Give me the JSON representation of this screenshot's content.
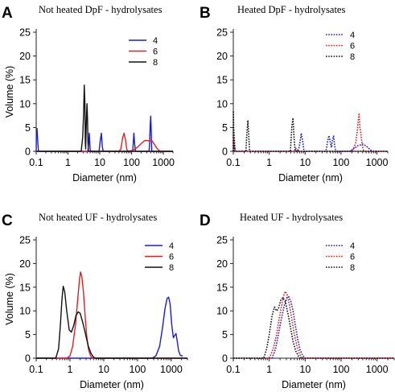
{
  "colors": {
    "s4": "#1a1adb",
    "s6": "#e02020",
    "s8": "#111111",
    "axis": "#222222"
  },
  "chart_data": [
    {
      "panel_letter": "A",
      "title": "Not heated DpF - hydrolysates",
      "type": "line",
      "xlabel": "Diameter (nm)",
      "ylabel": "Volume (%)",
      "xscale": "log",
      "xlim": [
        0.1,
        2000
      ],
      "ylim": [
        0,
        25
      ],
      "xticks": [
        0.1,
        1,
        10,
        100,
        1000
      ],
      "xtick_labels": [
        "0.1",
        "1",
        "10",
        "100",
        "1000"
      ],
      "yticks": [
        0,
        5,
        10,
        15,
        20,
        25
      ],
      "ytick_labels": [
        "0",
        "5",
        "10",
        "15",
        "20",
        "25"
      ],
      "dashed": false,
      "legend_position": "top-right",
      "series": [
        {
          "name": "4",
          "color": "#1a1adb",
          "points": [
            [
              0.1,
              0
            ],
            [
              0.101,
              3
            ],
            [
              0.106,
              4.8
            ],
            [
              0.112,
              2
            ],
            [
              0.118,
              0
            ],
            [
              4.2,
              0
            ],
            [
              4.45,
              1.5
            ],
            [
              4.7,
              3.8
            ],
            [
              4.95,
              0.5
            ],
            [
              5.2,
              0
            ],
            [
              9.5,
              0
            ],
            [
              10.3,
              2.2
            ],
            [
              11.2,
              3.8
            ],
            [
              12,
              1
            ],
            [
              12.8,
              0
            ],
            [
              108,
              0
            ],
            [
              112,
              1.5
            ],
            [
              118,
              3.8
            ],
            [
              125,
              1.5
            ],
            [
              132,
              0
            ],
            [
              355,
              0
            ],
            [
              370,
              2
            ],
            [
              385,
              5.5
            ],
            [
              400,
              7.4
            ],
            [
              415,
              4
            ],
            [
              430,
              0
            ],
            [
              2000,
              0
            ]
          ]
        },
        {
          "name": "6",
          "color": "#e02020",
          "points": [
            [
              0.1,
              0
            ],
            [
              40,
              0
            ],
            [
              46,
              0.5
            ],
            [
              52,
              2.8
            ],
            [
              58,
              3.8
            ],
            [
              64,
              2.5
            ],
            [
              70,
              0.6
            ],
            [
              75,
              0
            ],
            [
              110,
              0.2
            ],
            [
              150,
              0.8
            ],
            [
              200,
              1.6
            ],
            [
              250,
              2.2
            ],
            [
              300,
              2.3
            ],
            [
              350,
              2.2
            ],
            [
              400,
              2.2
            ],
            [
              430,
              2.3
            ],
            [
              460,
              2
            ],
            [
              520,
              1.5
            ],
            [
              600,
              0.8
            ],
            [
              700,
              0.3
            ],
            [
              800,
              0
            ],
            [
              2000,
              0
            ]
          ]
        },
        {
          "name": "8",
          "color": "#111111",
          "points": [
            [
              0.1,
              0
            ],
            [
              2.6,
              0
            ],
            [
              2.9,
              3
            ],
            [
              3.1,
              8
            ],
            [
              3.25,
              13.9
            ],
            [
              3.4,
              10
            ],
            [
              3.5,
              2
            ],
            [
              3.6,
              0.5
            ],
            [
              3.7,
              4
            ],
            [
              3.85,
              8
            ],
            [
              3.95,
              10
            ],
            [
              4.1,
              7
            ],
            [
              4.25,
              2
            ],
            [
              4.4,
              0
            ],
            [
              2000,
              0
            ]
          ]
        }
      ]
    },
    {
      "panel_letter": "B",
      "title": "Heated DpF - hydrolysates",
      "type": "line",
      "xlabel": "Diameter (nm)",
      "ylabel": "",
      "xscale": "log",
      "xlim": [
        0.1,
        2000
      ],
      "ylim": [
        0,
        25
      ],
      "xticks": [
        0.1,
        1,
        10,
        100,
        1000
      ],
      "xtick_labels": [
        "0.1",
        "1",
        "10",
        "100",
        "1000"
      ],
      "yticks": [
        0,
        5,
        10,
        15,
        20,
        25
      ],
      "ytick_labels": [
        "0",
        "5",
        "10",
        "15",
        "20",
        "25"
      ],
      "dashed": true,
      "legend_position": "top-right",
      "series": [
        {
          "name": "4",
          "color": "#1a1adb",
          "points": [
            [
              0.1,
              0
            ],
            [
              0.102,
              5
            ],
            [
              0.108,
              2
            ],
            [
              0.114,
              0
            ],
            [
              6.2,
              0
            ],
            [
              6.9,
              1
            ],
            [
              7.8,
              3.8
            ],
            [
              8.6,
              2
            ],
            [
              9.3,
              0
            ],
            [
              38,
              0
            ],
            [
              42,
              2
            ],
            [
              46,
              3.3
            ],
            [
              50,
              2
            ],
            [
              54,
              0.8
            ],
            [
              58,
              2.5
            ],
            [
              62,
              3.2
            ],
            [
              67,
              1
            ],
            [
              72,
              0
            ],
            [
              180,
              0
            ],
            [
              220,
              0.5
            ],
            [
              300,
              1.2
            ],
            [
              400,
              1.5
            ],
            [
              480,
              1.2
            ],
            [
              560,
              0.8
            ],
            [
              650,
              0.3
            ],
            [
              750,
              0
            ],
            [
              2000,
              0
            ]
          ]
        },
        {
          "name": "6",
          "color": "#e02020",
          "points": [
            [
              0.1,
              0
            ],
            [
              0.101,
              3
            ],
            [
              0.107,
              1
            ],
            [
              0.113,
              0
            ],
            [
              5,
              0
            ],
            [
              5.6,
              0.6
            ],
            [
              6.2,
              0
            ],
            [
              190,
              0
            ],
            [
              230,
              0.8
            ],
            [
              260,
              2
            ],
            [
              285,
              4.5
            ],
            [
              305,
              7
            ],
            [
              320,
              8
            ],
            [
              335,
              5
            ],
            [
              352,
              4
            ],
            [
              372,
              2.5
            ],
            [
              395,
              1
            ],
            [
              430,
              0
            ],
            [
              2000,
              0
            ]
          ]
        },
        {
          "name": "8",
          "color": "#111111",
          "points": [
            [
              0.1,
              0
            ],
            [
              0.1005,
              8.5
            ],
            [
              0.103,
              4
            ],
            [
              0.108,
              0
            ],
            [
              0.225,
              0
            ],
            [
              0.235,
              3
            ],
            [
              0.255,
              6.5
            ],
            [
              0.27,
              3
            ],
            [
              0.285,
              0
            ],
            [
              3.9,
              0
            ],
            [
              4.1,
              3
            ],
            [
              4.3,
              5.5
            ],
            [
              4.6,
              7
            ],
            [
              4.9,
              3
            ],
            [
              5.3,
              0
            ],
            [
              2000,
              0
            ]
          ]
        }
      ]
    },
    {
      "panel_letter": "C",
      "title": "Not heated UF - hydrolysates",
      "type": "line",
      "xlabel": "Diameter (nm)",
      "ylabel": "Volume (%)",
      "xscale": "log",
      "xlim": [
        0.1,
        3000
      ],
      "ylim": [
        0,
        25
      ],
      "xticks": [
        0.1,
        1,
        10,
        100,
        1000
      ],
      "xtick_labels": [
        "0.1",
        "1",
        "10",
        "100",
        "1000"
      ],
      "yticks": [
        0,
        5,
        10,
        15,
        20,
        25
      ],
      "ytick_labels": [
        "0",
        "5",
        "10",
        "15",
        "20",
        "25"
      ],
      "dashed": false,
      "legend_position": "top-right",
      "series": [
        {
          "name": "4",
          "color": "#1a1adb",
          "points": [
            [
              0.1,
              0
            ],
            [
              270,
              0
            ],
            [
              350,
              0.5
            ],
            [
              450,
              2.5
            ],
            [
              550,
              6.5
            ],
            [
              650,
              10.5
            ],
            [
              750,
              12.6
            ],
            [
              830,
              12.9
            ],
            [
              920,
              11.5
            ],
            [
              1030,
              7
            ],
            [
              1150,
              4.3
            ],
            [
              1250,
              4.8
            ],
            [
              1380,
              5.2
            ],
            [
              1500,
              3.5
            ],
            [
              1650,
              1.5
            ],
            [
              1850,
              0.6
            ],
            [
              2000,
              0.5
            ],
            [
              2200,
              0.5
            ]
          ]
        },
        {
          "name": "6",
          "color": "#e02020",
          "points": [
            [
              0.1,
              0
            ],
            [
              0.8,
              0
            ],
            [
              1,
              0.5
            ],
            [
              1.2,
              2.5
            ],
            [
              1.45,
              7
            ],
            [
              1.7,
              12.5
            ],
            [
              1.9,
              16.5
            ],
            [
              2.05,
              18.2
            ],
            [
              2.25,
              17.2
            ],
            [
              2.5,
              14
            ],
            [
              2.8,
              9
            ],
            [
              3.1,
              5
            ],
            [
              3.5,
              2
            ],
            [
              4,
              0.6
            ],
            [
              4.6,
              0
            ],
            [
              3000,
              0
            ]
          ]
        },
        {
          "name": "8",
          "color": "#111111",
          "points": [
            [
              0.1,
              0
            ],
            [
              0.38,
              0
            ],
            [
              0.46,
              2
            ],
            [
              0.52,
              7
            ],
            [
              0.58,
              12.5
            ],
            [
              0.63,
              15.2
            ],
            [
              0.7,
              14
            ],
            [
              0.8,
              10
            ],
            [
              0.95,
              6
            ],
            [
              1.1,
              5.5
            ],
            [
              1.3,
              7
            ],
            [
              1.5,
              9
            ],
            [
              1.75,
              9.8
            ],
            [
              2,
              9.5
            ],
            [
              2.4,
              7.5
            ],
            [
              2.9,
              5
            ],
            [
              3.5,
              2.5
            ],
            [
              4.2,
              1
            ],
            [
              5,
              0.2
            ],
            [
              5.8,
              0
            ],
            [
              3000,
              0
            ]
          ]
        }
      ]
    },
    {
      "panel_letter": "D",
      "title": "Heated UF - hydrolysates",
      "type": "line",
      "xlabel": "Diameter (nm)",
      "ylabel": "",
      "xscale": "log",
      "xlim": [
        0.1,
        3000
      ],
      "ylim": [
        0,
        25
      ],
      "xticks": [
        0.1,
        1,
        10,
        100,
        1000
      ],
      "xtick_labels": [
        "0.1",
        "1",
        "10",
        "100",
        "1000"
      ],
      "yticks": [
        0,
        5,
        10,
        15,
        20,
        25
      ],
      "ytick_labels": [
        "0",
        "5",
        "10",
        "15",
        "20",
        "25"
      ],
      "dashed": true,
      "legend_position": "top-right",
      "series": [
        {
          "name": "4",
          "color": "#1a1adb",
          "points": [
            [
              0.1,
              0
            ],
            [
              1.2,
              0
            ],
            [
              1.5,
              2
            ],
            [
              1.8,
              5
            ],
            [
              2.2,
              8.5
            ],
            [
              2.6,
              11
            ],
            [
              3.1,
              12.8
            ],
            [
              3.5,
              13
            ],
            [
              4,
              12
            ],
            [
              4.6,
              10
            ],
            [
              5.3,
              7
            ],
            [
              6.2,
              4
            ],
            [
              7.2,
              1.8
            ],
            [
              8.5,
              0.6
            ],
            [
              10,
              0
            ],
            [
              3000,
              0
            ]
          ]
        },
        {
          "name": "6",
          "color": "#e02020",
          "points": [
            [
              0.1,
              0
            ],
            [
              1,
              0
            ],
            [
              1.3,
              2
            ],
            [
              1.6,
              5
            ],
            [
              1.9,
              8.5
            ],
            [
              2.2,
              11
            ],
            [
              2.5,
              13.2
            ],
            [
              2.8,
              14.1
            ],
            [
              3.2,
              13.3
            ],
            [
              3.7,
              11
            ],
            [
              4.3,
              8
            ],
            [
              5,
              5
            ],
            [
              6,
              2.3
            ],
            [
              7,
              0.8
            ],
            [
              8.5,
              0
            ],
            [
              3000,
              0
            ]
          ]
        },
        {
          "name": "8",
          "color": "#111111",
          "points": [
            [
              0.1,
              0
            ],
            [
              0.7,
              0
            ],
            [
              0.85,
              2
            ],
            [
              1,
              5
            ],
            [
              1.2,
              9
            ],
            [
              1.4,
              10.8
            ],
            [
              1.6,
              10
            ],
            [
              1.8,
              10.5
            ],
            [
              2.1,
              12.3
            ],
            [
              2.4,
              12.8
            ],
            [
              2.8,
              12
            ],
            [
              3.3,
              9.5
            ],
            [
              3.9,
              6.5
            ],
            [
              4.6,
              3.5
            ],
            [
              5.5,
              1.5
            ],
            [
              6.5,
              0.4
            ],
            [
              7.5,
              0
            ],
            [
              3000,
              0
            ]
          ]
        }
      ]
    }
  ]
}
